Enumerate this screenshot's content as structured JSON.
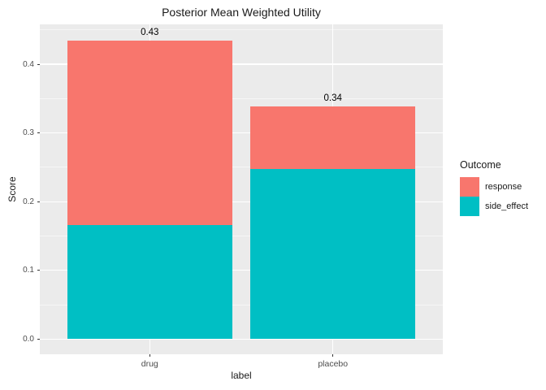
{
  "title": "Posterior Mean Weighted Utility",
  "axes": {
    "x_label": "label",
    "y_label": "Score"
  },
  "legend": {
    "title": "Outcome",
    "items": [
      {
        "label": "response",
        "color": "#F8766D"
      },
      {
        "label": "side_effect",
        "color": "#00BFC4"
      }
    ]
  },
  "colors": {
    "panel_background": "#EBEBEB",
    "grid_major": "#FFFFFF",
    "grid_minor": "rgba(255,255,255,0.55)",
    "tick_text": "#4D4D4D",
    "tick_mark": "#333333",
    "response": "#F8766D",
    "side_effect": "#00BFC4"
  },
  "chart_data": {
    "type": "bar",
    "stacked": true,
    "categories": [
      "drug",
      "placebo"
    ],
    "series": [
      {
        "name": "side_effect",
        "color": "#00BFC4",
        "values": [
          0.166,
          0.248
        ]
      },
      {
        "name": "response",
        "color": "#F8766D",
        "values": [
          0.268,
          0.091
        ]
      }
    ],
    "bar_total_labels": [
      "0.43",
      "0.34"
    ],
    "title": "Posterior Mean Weighted Utility",
    "xlabel": "label",
    "ylabel": "Score",
    "yticks": [
      0.0,
      0.1,
      0.2,
      0.3,
      0.4
    ],
    "ytick_labels": [
      "0.0",
      "0.1",
      "0.2",
      "0.3",
      "0.4"
    ],
    "yticks_minor": [
      0.05,
      0.15,
      0.25,
      0.35,
      0.45
    ],
    "ylim": [
      -0.022,
      0.458
    ],
    "grid": true,
    "legend_position": "right",
    "legend_order": [
      "response",
      "side_effect"
    ]
  }
}
